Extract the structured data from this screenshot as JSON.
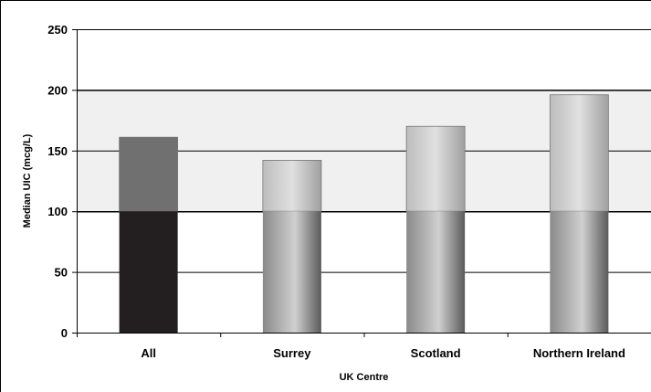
{
  "chart_data": {
    "type": "bar",
    "title": "",
    "xlabel": "UK Centre",
    "ylabel": "Median UIC (mcg/L)",
    "categories": [
      "All",
      "Surrey",
      "Scotland",
      "Northern Ireland"
    ],
    "values": [
      161,
      142,
      170,
      196
    ],
    "ylim": [
      0,
      250
    ],
    "yticks": [
      0,
      50,
      100,
      150,
      200,
      250
    ],
    "grid": true,
    "reference_band": [
      100,
      200
    ],
    "colors": {
      "band": "#f0f0f0",
      "all_below_100": "#231f20",
      "all_above_100": "#707070",
      "bar_gradient_dark": "#555555",
      "bar_gradient_light": "#c8c8c8"
    }
  }
}
